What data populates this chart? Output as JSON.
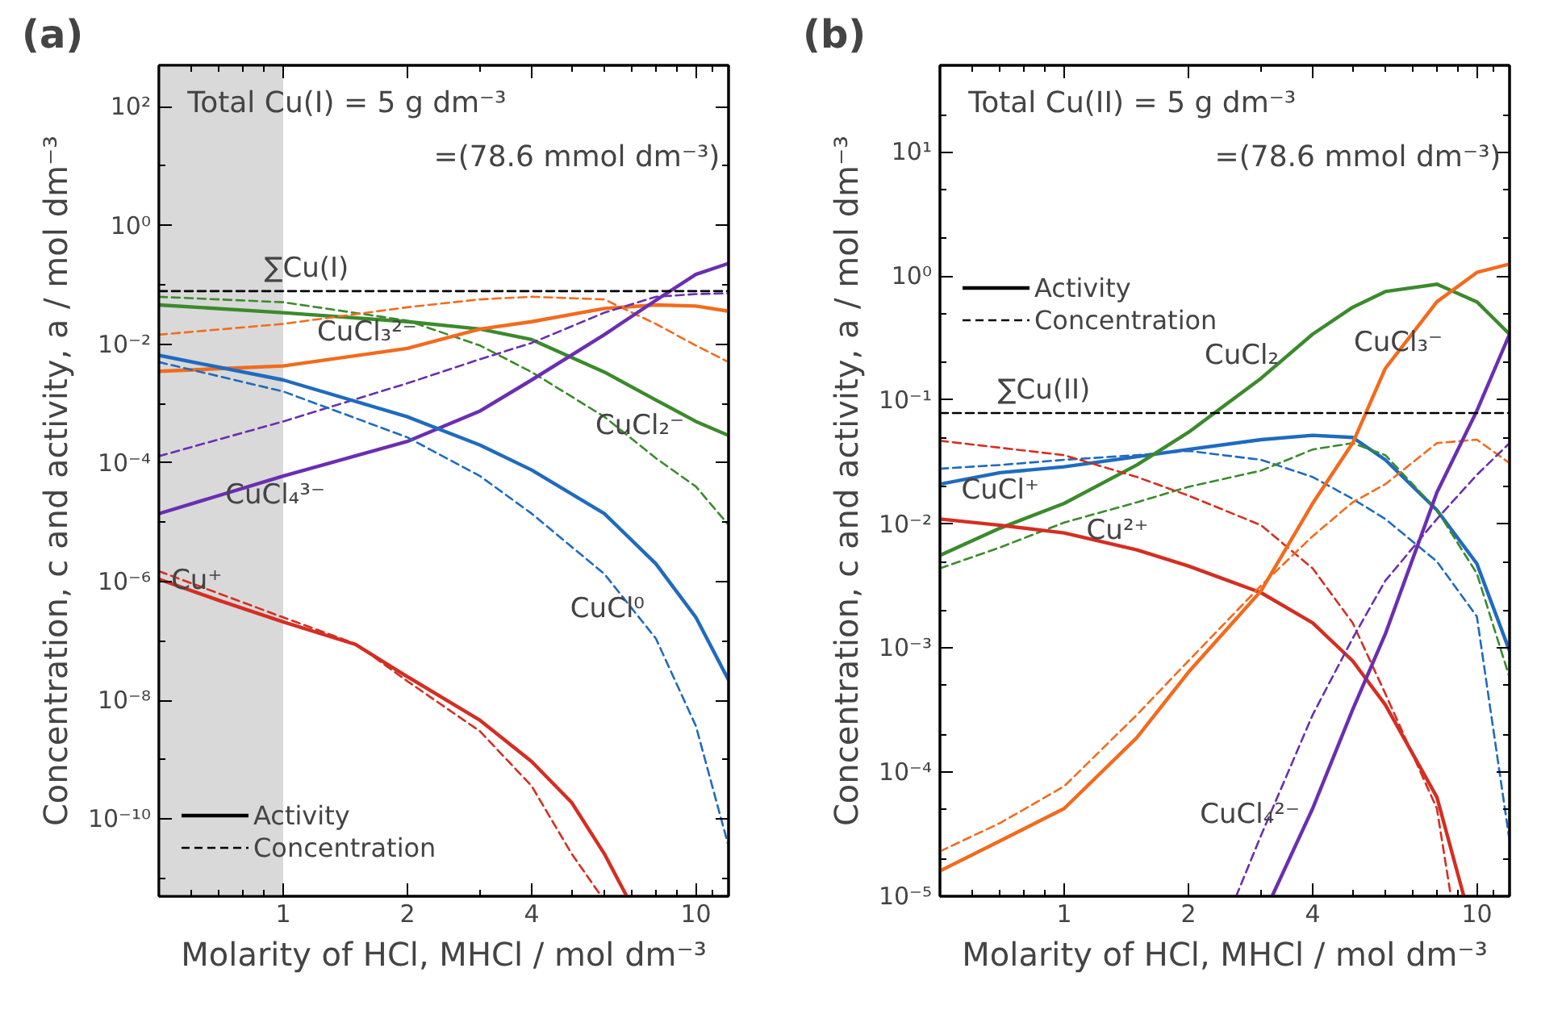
{
  "chart_data": [
    {
      "type": "line",
      "title": "(a)",
      "subtitle": "Total Cu(I)  = 5 g dm⁻³\n=(78.6 mmol dm⁻³)",
      "xlabel": "Molarity of HCl, MHCl / mol dm⁻³",
      "ylabel": "Concentration, c and activity, a / mol dm⁻³",
      "log": "xy",
      "xlim": [
        0.5,
        12
      ],
      "ylim": [
        5e-12,
        500
      ],
      "xticks": [
        {
          "value": 0.6,
          "label": null
        },
        {
          "value": 0.7,
          "label": null
        },
        {
          "value": 0.8,
          "label": null
        },
        {
          "value": 0.9,
          "label": null
        },
        1,
        2,
        {
          "value": 3,
          "label": null
        },
        4,
        {
          "value": 5,
          "label": null
        },
        {
          "value": 6,
          "label": null
        },
        {
          "value": 7,
          "label": null
        },
        {
          "value": 8,
          "label": null
        },
        {
          "value": 9,
          "label": null
        },
        10,
        {
          "value": 11,
          "label": null
        }
      ],
      "yticks": [
        {
          "value": 1e-11,
          "label": null
        },
        {
          "value": 1e-10,
          "label": "10⁻¹⁰"
        },
        {
          "value": 1e-09,
          "label": null
        },
        {
          "value": 1e-08,
          "label": "10⁻⁸"
        },
        {
          "value": 1e-07,
          "label": null
        },
        {
          "value": 1e-06,
          "label": "10⁻⁶"
        },
        {
          "value": 1e-05,
          "label": null
        },
        {
          "value": 0.0001,
          "label": "10⁻⁴"
        },
        {
          "value": 0.001,
          "label": null
        },
        {
          "value": 0.01,
          "label": "10⁻²"
        },
        {
          "value": 0.1,
          "label": null
        },
        {
          "value": 1,
          "label": "10⁰"
        },
        {
          "value": 10,
          "label": null
        },
        {
          "value": 100,
          "label": "10²"
        }
      ],
      "bands": [
        {
          "axis": "x",
          "from": 0.5,
          "to": 1,
          "color": "#d9d9d9"
        }
      ],
      "series": [
        {
          "color": "#3b8a2c",
          "line_style": "solid",
          "x": [
            0.5,
            1,
            2,
            3,
            4,
            6,
            8,
            10,
            12
          ],
          "values": [
            0.046,
            0.034,
            0.024,
            0.018,
            0.012,
            0.0034,
            0.00115,
            0.0005,
            0.00029
          ]
        },
        {
          "color": "#3b8a2c",
          "line_style": "dashed",
          "x": [
            0.5,
            1,
            2,
            3,
            4,
            6,
            8,
            10,
            12
          ],
          "values": [
            0.063,
            0.051,
            0.025,
            0.0095,
            0.0034,
            0.0006,
            0.00012,
            4e-05,
            9e-06
          ]
        },
        {
          "color": "#f26b1d",
          "line_style": "solid",
          "x": [
            0.5,
            1,
            2,
            3,
            4,
            6,
            8,
            10,
            12
          ],
          "values": [
            0.0035,
            0.0043,
            0.0085,
            0.018,
            0.024,
            0.04,
            0.046,
            0.044,
            0.036
          ]
        },
        {
          "color": "#f26b1d",
          "line_style": "dashed",
          "x": [
            0.5,
            1,
            2,
            3,
            4,
            6,
            8,
            10,
            12
          ],
          "values": [
            0.0145,
            0.022,
            0.042,
            0.057,
            0.063,
            0.057,
            0.022,
            0.0095,
            0.005
          ]
        },
        {
          "color": "#6a2fb0",
          "line_style": "solid",
          "x": [
            0.5,
            1,
            2,
            3,
            4,
            6,
            8,
            10,
            12
          ],
          "values": [
            1.4e-05,
            6e-05,
            0.00023,
            0.00075,
            0.0025,
            0.0145,
            0.055,
            0.15,
            0.23
          ]
        },
        {
          "color": "#6a2fb0",
          "line_style": "dashed",
          "x": [
            0.5,
            1,
            2,
            3,
            4,
            6,
            8,
            10,
            12
          ],
          "values": [
            0.00013,
            0.0005,
            0.0022,
            0.0056,
            0.0105,
            0.034,
            0.063,
            0.07,
            0.072
          ]
        },
        {
          "color": "#1f6bbf",
          "line_style": "solid",
          "x": [
            0.5,
            1,
            2,
            3,
            4,
            6,
            8,
            10,
            12
          ],
          "values": [
            0.0065,
            0.0025,
            0.0006,
            0.0002,
            7.6e-05,
            1.4e-05,
            2e-06,
            2.5e-07,
            2.2e-08
          ]
        },
        {
          "color": "#1f6bbf",
          "line_style": "dashed",
          "x": [
            0.5,
            1,
            2,
            3,
            4,
            6,
            8,
            10,
            12
          ],
          "values": [
            0.005,
            0.0016,
            0.00027,
            6e-05,
            1.4e-05,
            1.35e-06,
            1.1e-07,
            3.7e-09,
            3.5e-11
          ]
        },
        {
          "color": "#d42e22",
          "line_style": "solid",
          "x": [
            0.5,
            0.7,
            1,
            1.5,
            2,
            3,
            4,
            5,
            6,
            6.8
          ],
          "values": [
            1.1e-06,
            4.8e-07,
            2.1e-07,
            8.7e-08,
            2.5e-08,
            4.6e-09,
            9.3e-10,
            1.9e-10,
            2.6e-11,
            5e-12
          ]
        },
        {
          "color": "#d42e22",
          "line_style": "dashed",
          "x": [
            0.5,
            1,
            1.5,
            2,
            3,
            4,
            5,
            5.9
          ],
          "values": [
            1.5e-06,
            2.5e-07,
            8.9e-08,
            2.1e-08,
            3e-09,
            3.6e-10,
            2.6e-11,
            5e-12
          ]
        },
        {
          "color": "#000000",
          "line_style": "dashed",
          "x": [
            0.5,
            0.9,
            12
          ],
          "values": [
            0.0786,
            0.0786,
            0.0786
          ]
        }
      ],
      "annotations": [
        "Activity",
        "Concentration",
        {
          "text": "∑Cu(I)",
          "x": 0.9,
          "y": 0.0786
        },
        {
          "text": "CuCl₃²⁻",
          "x": 2,
          "y": 0.0085
        },
        {
          "text": "CuCl₂⁻",
          "x": 8,
          "y": 0.00115
        },
        {
          "text": "CuCl₄³⁻",
          "x": 1,
          "y": 6e-05
        },
        {
          "text": "Cu⁺",
          "x": 0.7,
          "y": 4.8e-07
        },
        {
          "text": "CuCl⁰",
          "x": 8,
          "y": 2e-06
        }
      ]
    },
    {
      "type": "line",
      "title": "(b)",
      "subtitle": "Total Cu(II)  = 5 g dm⁻³\n=(78.6 mmol dm⁻³)",
      "xlabel": "Molarity of HCl, MHCl / mol dm⁻³",
      "ylabel": "Concentration, c and activity, a / mol dm⁻³",
      "log": "xy",
      "xlim": [
        0.5,
        12
      ],
      "ylim": [
        1e-05,
        50
      ],
      "xticks": [
        {
          "value": 0.6,
          "label": null
        },
        {
          "value": 0.7,
          "label": null
        },
        {
          "value": 0.8,
          "label": null
        },
        {
          "value": 0.9,
          "label": null
        },
        1,
        2,
        {
          "value": 3,
          "label": null
        },
        4,
        {
          "value": 5,
          "label": null
        },
        {
          "value": 6,
          "label": null
        },
        {
          "value": 7,
          "label": null
        },
        {
          "value": 8,
          "label": null
        },
        {
          "value": 9,
          "label": null
        },
        10,
        {
          "value": 11,
          "label": null
        }
      ],
      "yticks": [
        {
          "value": 1e-05,
          "label": "10⁻⁵"
        },
        {
          "value": 2e-05,
          "label": null
        },
        {
          "value": 5e-05,
          "label": null
        },
        {
          "value": 0.0001,
          "label": "10⁻⁴"
        },
        {
          "value": 0.0002,
          "label": null
        },
        {
          "value": 0.0005,
          "label": null
        },
        {
          "value": 0.001,
          "label": "10⁻³"
        },
        {
          "value": 0.002,
          "label": null
        },
        {
          "value": 0.005,
          "label": null
        },
        {
          "value": 0.01,
          "label": "10⁻²"
        },
        {
          "value": 0.02,
          "label": null
        },
        {
          "value": 0.05,
          "label": null
        },
        {
          "value": 0.1,
          "label": "10⁻¹"
        },
        {
          "value": 0.2,
          "label": null
        },
        {
          "value": 0.5,
          "label": null
        },
        {
          "value": 1,
          "label": "10⁰"
        },
        {
          "value": 2,
          "label": null
        },
        {
          "value": 5,
          "label": null
        },
        {
          "value": 10,
          "label": "10¹"
        },
        {
          "value": 20,
          "label": null
        }
      ],
      "series": [
        {
          "color": "#1f6bbf",
          "line_style": "solid",
          "x": [
            0.5,
            0.7,
            1,
            1.5,
            2,
            3,
            4,
            5,
            6,
            8,
            10,
            12
          ],
          "values": [
            0.021,
            0.026,
            0.029,
            0.035,
            0.04,
            0.048,
            0.052,
            0.05,
            0.033,
            0.013,
            0.0048,
            0.00095
          ]
        },
        {
          "color": "#1f6bbf",
          "line_style": "dashed",
          "x": [
            0.5,
            0.7,
            1,
            1.5,
            2,
            3,
            4,
            5,
            6,
            8,
            10,
            12
          ],
          "values": [
            0.028,
            0.03,
            0.033,
            0.036,
            0.039,
            0.033,
            0.024,
            0.016,
            0.011,
            0.005,
            0.0018,
            2.8e-05
          ]
        },
        {
          "color": "#3b8a2c",
          "line_style": "solid",
          "x": [
            0.5,
            0.7,
            1,
            1.5,
            2,
            3,
            4,
            5,
            6,
            8,
            10,
            12
          ],
          "values": [
            0.0056,
            0.0093,
            0.0147,
            0.03,
            0.055,
            0.15,
            0.34,
            0.56,
            0.75,
            0.86,
            0.62,
            0.34
          ]
        },
        {
          "color": "#3b8a2c",
          "line_style": "dashed",
          "x": [
            0.5,
            0.7,
            1,
            1.5,
            2,
            3,
            4,
            5,
            6,
            8,
            10,
            12
          ],
          "values": [
            0.0044,
            0.0065,
            0.0103,
            0.015,
            0.02,
            0.027,
            0.04,
            0.045,
            0.036,
            0.013,
            0.004,
            0.00058
          ]
        },
        {
          "color": "#d42e22",
          "line_style": "solid",
          "x": [
            0.5,
            0.7,
            1,
            1.5,
            2,
            3,
            4,
            5,
            6,
            8,
            9.3
          ],
          "values": [
            0.011,
            0.0098,
            0.0085,
            0.0062,
            0.0046,
            0.0028,
            0.0016,
            0.00079,
            0.00035,
            6.3e-05,
            1e-05
          ]
        },
        {
          "color": "#d42e22",
          "line_style": "dashed",
          "x": [
            0.5,
            1,
            1.5,
            2,
            3,
            4,
            5,
            6,
            8,
            8.65
          ],
          "values": [
            0.047,
            0.036,
            0.024,
            0.017,
            0.0098,
            0.0044,
            0.0016,
            0.00043,
            5.1e-05,
            1e-05
          ]
        },
        {
          "color": "#f26b1d",
          "line_style": "solid",
          "x": [
            0.5,
            0.7,
            1,
            1.5,
            2,
            3,
            4,
            5,
            6,
            8,
            10,
            12
          ],
          "values": [
            1.6e-05,
            2.8e-05,
            5.1e-05,
            0.00019,
            0.00064,
            0.0029,
            0.0147,
            0.045,
            0.18,
            0.62,
            1.07,
            1.25
          ]
        },
        {
          "color": "#f26b1d",
          "line_style": "dashed",
          "x": [
            0.5,
            0.7,
            1,
            1.5,
            2,
            3,
            4,
            5,
            6,
            8,
            10,
            12
          ],
          "values": [
            2.3e-05,
            3.9e-05,
            7.7e-05,
            0.00029,
            0.00079,
            0.0032,
            0.008,
            0.015,
            0.021,
            0.045,
            0.048,
            0.031
          ]
        },
        {
          "color": "#6a2fb0",
          "line_style": "solid",
          "x": [
            3.19,
            4,
            5,
            6,
            8,
            10,
            12
          ],
          "values": [
            1e-05,
            5.1e-05,
            0.00032,
            0.0013,
            0.018,
            0.082,
            0.34
          ]
        },
        {
          "color": "#6a2fb0",
          "line_style": "dashed",
          "x": [
            2.61,
            3,
            4,
            5,
            6,
            8,
            10,
            12
          ],
          "values": [
            1e-05,
            3.1e-05,
            0.00029,
            0.0012,
            0.0035,
            0.011,
            0.025,
            0.045
          ]
        },
        {
          "color": "#000000",
          "line_style": "dashed",
          "x": [
            0.5,
            0.69,
            12
          ],
          "values": [
            0.0786,
            0.0786,
            0.0786
          ]
        }
      ],
      "annotations": [
        "Activity",
        "Concentration",
        {
          "text": "∑Cu(II)",
          "x": 0.69,
          "y": 0.0786
        },
        {
          "text": "CuCl₂",
          "x": 3,
          "y": 0.15
        },
        {
          "text": "CuCl₃⁻",
          "x": 6,
          "y": 0.18
        },
        {
          "text": "CuCl⁺",
          "x": 0.7,
          "y": 0.026
        },
        {
          "text": "Cu²⁺",
          "x": 1.5,
          "y": 0.0062
        },
        {
          "text": "CuCl₄²⁻",
          "x": 4,
          "y": 5.1e-05
        }
      ]
    }
  ]
}
